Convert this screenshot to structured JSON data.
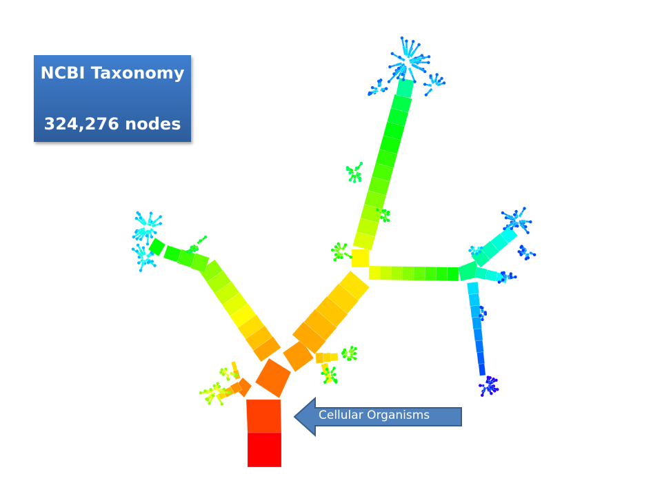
{
  "title_box": {
    "title": "NCBI Taxonomy",
    "subtitle": "324,276 nodes"
  },
  "callout": {
    "label": "Cellular Organisms",
    "color": "#4f81bd",
    "border": "#385d8a"
  },
  "visualization": {
    "type": "pythagoras-tree",
    "color_scale": [
      "#ff0000",
      "#ff9900",
      "#ffff00",
      "#00ff00",
      "#00ffff",
      "#0000ff"
    ]
  }
}
